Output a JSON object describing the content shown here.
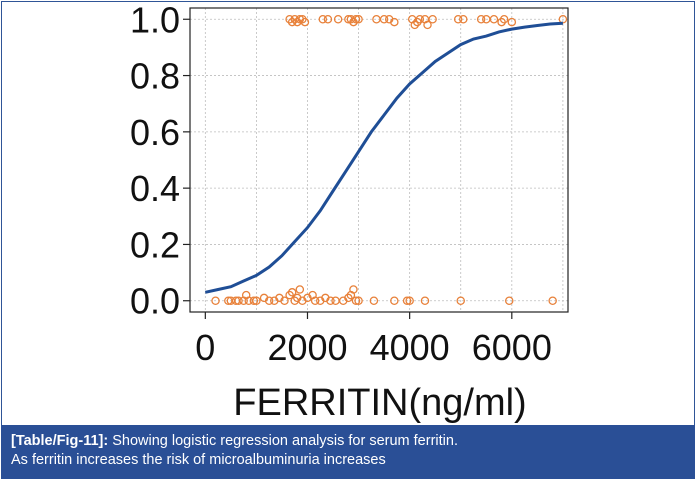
{
  "caption": {
    "ref": "[Table/Fig-11]:",
    "line1": "Showing logistic regression analysis for serum ferritin.",
    "line2": "As ferritin increases the risk of microalbuminuria increases"
  },
  "chart_data": {
    "type": "scatter",
    "xlabel": "FERRITIN(ng/ml)",
    "ylabel": "",
    "xlim": [
      -300,
      7100
    ],
    "ylim": [
      -0.04,
      1.04
    ],
    "x_ticks": [
      0,
      2000,
      4000,
      6000
    ],
    "x_tick_labels": [
      "0",
      "2000",
      "4000",
      "6000"
    ],
    "y_ticks": [
      0.0,
      0.2,
      0.4,
      0.6,
      0.8,
      1.0
    ],
    "y_tick_labels": [
      "0.0",
      "0.2",
      "0.4",
      "0.6",
      "0.8",
      "1.0"
    ],
    "grid": true,
    "colors": {
      "curve": "#1f4e96",
      "points": "#e8813a",
      "grid": "#bdbdbd"
    },
    "curve": {
      "x": [
        0,
        250,
        500,
        750,
        1000,
        1250,
        1500,
        1750,
        2000,
        2250,
        2500,
        2750,
        3000,
        3250,
        3500,
        3750,
        4000,
        4250,
        4500,
        4750,
        5000,
        5250,
        5500,
        5750,
        6000,
        6250,
        6500,
        6750,
        7000
      ],
      "y": [
        0.03,
        0.04,
        0.05,
        0.07,
        0.09,
        0.12,
        0.16,
        0.21,
        0.26,
        0.32,
        0.39,
        0.46,
        0.53,
        0.6,
        0.66,
        0.72,
        0.77,
        0.81,
        0.85,
        0.88,
        0.91,
        0.93,
        0.94,
        0.955,
        0.965,
        0.972,
        0.978,
        0.983,
        0.986
      ]
    },
    "series": [
      {
        "values_x": [
          1650,
          1700,
          1750,
          1800,
          1850,
          1900,
          1950,
          2300,
          2400,
          2600,
          2800,
          2850,
          2900,
          2950,
          3000,
          3350,
          3500,
          3600,
          3700,
          4050,
          4100,
          4150,
          4200,
          4300,
          4350,
          4450,
          4950,
          5050,
          5400,
          5500,
          5650,
          5800,
          5850,
          6000,
          7000
        ],
        "values_y": [
          1.0,
          0.99,
          1.0,
          0.99,
          1.0,
          1.0,
          0.99,
          1.0,
          1.0,
          1.0,
          1.0,
          1.0,
          0.99,
          1.0,
          1.0,
          1.0,
          1.0,
          1.0,
          0.99,
          1.0,
          0.98,
          0.99,
          1.0,
          1.0,
          0.98,
          1.0,
          1.0,
          1.0,
          1.0,
          1.0,
          1.0,
          0.99,
          1.0,
          0.99,
          1.0
        ]
      },
      {
        "values_x": [
          200,
          450,
          500,
          600,
          650,
          750,
          800,
          850,
          950,
          1000,
          1150,
          1250,
          1350,
          1450,
          1550,
          1650,
          1700,
          1750,
          1800,
          1850,
          1900,
          2000,
          2100,
          2150,
          2250,
          2350,
          2450,
          2550,
          2700,
          2800,
          2850,
          2900,
          2950,
          3000,
          3300,
          3700,
          3950,
          4000,
          4300,
          5000,
          5950,
          6800
        ],
        "values_y": [
          0.0,
          0.0,
          0.0,
          0.0,
          0.0,
          0.0,
          0.02,
          0.0,
          0.0,
          0.0,
          0.01,
          0.0,
          0.0,
          0.01,
          0.0,
          0.02,
          0.03,
          0.0,
          0.01,
          0.04,
          0.0,
          0.01,
          0.02,
          0.0,
          0.0,
          0.01,
          0.0,
          0.0,
          0.0,
          0.01,
          0.02,
          0.04,
          0.0,
          0.0,
          0.0,
          0.0,
          0.0,
          0.0,
          0.0,
          0.0,
          0.0,
          0.0
        ]
      }
    ]
  }
}
